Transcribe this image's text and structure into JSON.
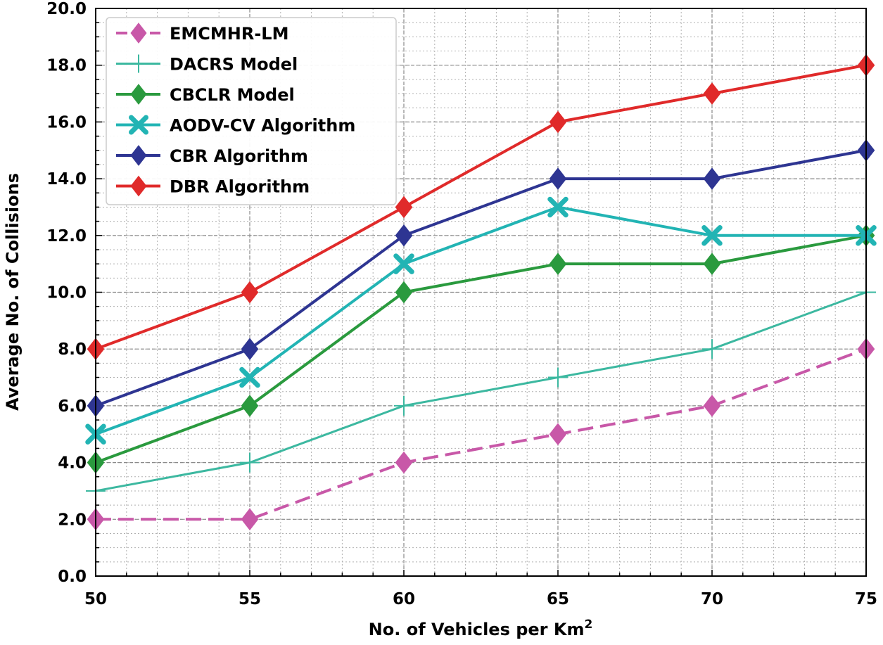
{
  "chart_data": {
    "type": "line",
    "title": "",
    "xlabel": "No. of Vehicles per Km",
    "xlabel_superscript": "2",
    "ylabel": "Average No. of Collisions",
    "x": [
      50,
      55,
      60,
      65,
      70,
      75
    ],
    "xlim": [
      50,
      75
    ],
    "ylim": [
      0,
      20
    ],
    "x_ticks": [
      "50",
      "55",
      "60",
      "65",
      "70",
      "75"
    ],
    "y_ticks": [
      "0.0",
      "2.0",
      "4.0",
      "6.0",
      "8.0",
      "10.0",
      "12.0",
      "14.0",
      "16.0",
      "18.0",
      "20.0"
    ],
    "grid": true,
    "legend_position": "top-left",
    "series": [
      {
        "name": "EMCMHR-LM",
        "values": [
          2,
          2,
          4,
          5,
          6,
          8
        ],
        "color": "#c858a8",
        "marker": "diamond",
        "dashed": true
      },
      {
        "name": "DACRS Model",
        "values": [
          3,
          4,
          6,
          7,
          8,
          10
        ],
        "color": "#3cb8a0",
        "marker": "plus",
        "dashed": false
      },
      {
        "name": "CBCLR Model",
        "values": [
          4,
          6,
          10,
          11,
          11,
          12
        ],
        "color": "#2a9a3e",
        "marker": "diamond",
        "dashed": false
      },
      {
        "name": "AODV-CV Algorithm",
        "values": [
          5,
          7,
          11,
          13,
          12,
          12
        ],
        "color": "#22b4b4",
        "marker": "x",
        "dashed": false
      },
      {
        "name": "CBR Algorithm",
        "values": [
          6,
          8,
          12,
          14,
          14,
          15
        ],
        "color": "#2e3592",
        "marker": "diamond",
        "dashed": false
      },
      {
        "name": "DBR Algorithm",
        "values": [
          8,
          10,
          13,
          16,
          17,
          18
        ],
        "color": "#e02a2a",
        "marker": "diamond",
        "dashed": false
      }
    ]
  }
}
